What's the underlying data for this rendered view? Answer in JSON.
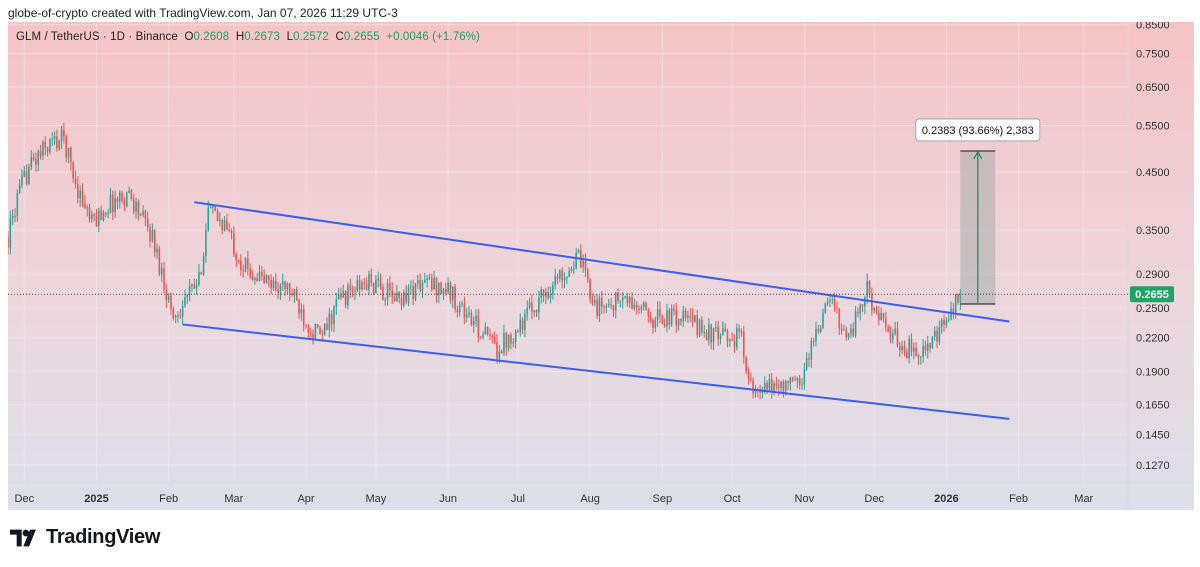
{
  "caption": "globe-of-crypto created with TradingView.com, Jan 07, 2026 11:29 UTC-3",
  "footer": {
    "brand": "TradingView"
  },
  "legend": {
    "symbol": "GLM / TetherUS · 1D · Binance",
    "o_label": "O",
    "o": "0.2608",
    "h_label": "H",
    "h": "0.2673",
    "l_label": "L",
    "l": "0.2572",
    "c_label": "C",
    "c": "0.2655",
    "change": "+0.0046 (+1.76%)"
  },
  "chart_data": {
    "type": "candlestick",
    "title": "GLM / TetherUS · 1D · Binance",
    "y_scale": "log",
    "ylim": [
      0.118,
      0.86
    ],
    "xlim": [
      "2024-11-24",
      "2026-03-20"
    ],
    "y_ticks": [
      "0.8500",
      "0.7500",
      "0.6500",
      "0.5500",
      "0.4500",
      "0.3500",
      "0.2900",
      "0.2500",
      "0.2200",
      "0.1900",
      "0.1650",
      "0.1450",
      "0.1270"
    ],
    "y_tick_values": [
      0.85,
      0.75,
      0.65,
      0.55,
      0.45,
      0.35,
      0.29,
      0.25,
      0.22,
      0.19,
      0.165,
      0.145,
      0.127
    ],
    "x_ticks": [
      {
        "label": "Dec",
        "date": "2024-12-01"
      },
      {
        "label": "2025",
        "date": "2025-01-01"
      },
      {
        "label": "Feb",
        "date": "2025-02-01"
      },
      {
        "label": "Mar",
        "date": "2025-03-01"
      },
      {
        "label": "Apr",
        "date": "2025-04-01"
      },
      {
        "label": "May",
        "date": "2025-05-01"
      },
      {
        "label": "Jun",
        "date": "2025-06-01"
      },
      {
        "label": "Jul",
        "date": "2025-07-01"
      },
      {
        "label": "Aug",
        "date": "2025-08-01"
      },
      {
        "label": "Sep",
        "date": "2025-09-01"
      },
      {
        "label": "Oct",
        "date": "2025-10-01"
      },
      {
        "label": "Nov",
        "date": "2025-11-01"
      },
      {
        "label": "Dec",
        "date": "2025-12-01"
      },
      {
        "label": "2026",
        "date": "2026-01-01"
      },
      {
        "label": "Feb",
        "date": "2026-02-01"
      },
      {
        "label": "Mar",
        "date": "2026-03-01"
      }
    ],
    "price_path": [
      {
        "date": "2024-11-24",
        "close": 0.34
      },
      {
        "date": "2024-11-28",
        "close": 0.4
      },
      {
        "date": "2024-12-03",
        "close": 0.46
      },
      {
        "date": "2024-12-12",
        "close": 0.51
      },
      {
        "date": "2024-12-18",
        "close": 0.52
      },
      {
        "date": "2024-12-23",
        "close": 0.43
      },
      {
        "date": "2024-12-30",
        "close": 0.36
      },
      {
        "date": "2025-01-06",
        "close": 0.39
      },
      {
        "date": "2025-01-15",
        "close": 0.41
      },
      {
        "date": "2025-01-25",
        "close": 0.34
      },
      {
        "date": "2025-02-03",
        "close": 0.24
      },
      {
        "date": "2025-02-08",
        "close": 0.26
      },
      {
        "date": "2025-02-14",
        "close": 0.28
      },
      {
        "date": "2025-02-18",
        "close": 0.38
      },
      {
        "date": "2025-02-25",
        "close": 0.36
      },
      {
        "date": "2025-03-05",
        "close": 0.3
      },
      {
        "date": "2025-03-15",
        "close": 0.28
      },
      {
        "date": "2025-03-25",
        "close": 0.27
      },
      {
        "date": "2025-04-03",
        "close": 0.23
      },
      {
        "date": "2025-04-08",
        "close": 0.22
      },
      {
        "date": "2025-04-15",
        "close": 0.26
      },
      {
        "date": "2025-04-28",
        "close": 0.28
      },
      {
        "date": "2025-05-10",
        "close": 0.26
      },
      {
        "date": "2025-05-22",
        "close": 0.28
      },
      {
        "date": "2025-06-01",
        "close": 0.27
      },
      {
        "date": "2025-06-10",
        "close": 0.24
      },
      {
        "date": "2025-06-22",
        "close": 0.21
      },
      {
        "date": "2025-07-01",
        "close": 0.23
      },
      {
        "date": "2025-07-10",
        "close": 0.26
      },
      {
        "date": "2025-07-20",
        "close": 0.29
      },
      {
        "date": "2025-07-27",
        "close": 0.31
      },
      {
        "date": "2025-08-04",
        "close": 0.25
      },
      {
        "date": "2025-08-15",
        "close": 0.26
      },
      {
        "date": "2025-08-28",
        "close": 0.24
      },
      {
        "date": "2025-09-10",
        "close": 0.24
      },
      {
        "date": "2025-09-25",
        "close": 0.22
      },
      {
        "date": "2025-10-05",
        "close": 0.22
      },
      {
        "date": "2025-10-10",
        "close": 0.17
      },
      {
        "date": "2025-10-20",
        "close": 0.18
      },
      {
        "date": "2025-10-30",
        "close": 0.18
      },
      {
        "date": "2025-11-05",
        "close": 0.22
      },
      {
        "date": "2025-11-12",
        "close": 0.26
      },
      {
        "date": "2025-11-20",
        "close": 0.22
      },
      {
        "date": "2025-11-28",
        "close": 0.27
      },
      {
        "date": "2025-12-05",
        "close": 0.23
      },
      {
        "date": "2025-12-15",
        "close": 0.21
      },
      {
        "date": "2025-12-25",
        "close": 0.21
      },
      {
        "date": "2026-01-02",
        "close": 0.24
      },
      {
        "date": "2026-01-07",
        "close": 0.2655
      }
    ],
    "trendlines": [
      {
        "name": "upper",
        "from": {
          "date": "2025-02-12",
          "price": 0.395
        },
        "to": {
          "date": "2026-01-28",
          "price": 0.236
        },
        "color": "#3b5cf5"
      },
      {
        "name": "lower",
        "from": {
          "date": "2025-02-07",
          "price": 0.233
        },
        "to": {
          "date": "2026-01-28",
          "price": 0.155
        },
        "color": "#3b5cf5"
      }
    ],
    "measure": {
      "from_date": "2026-01-07",
      "to_date": "2026-01-22",
      "from_price": 0.2545,
      "to_price": 0.4928,
      "label": "0.2383 (93.66%) 2,383"
    },
    "last_price": {
      "label": "0.2655",
      "value": 0.2655
    },
    "colors": {
      "up": "#26a69a",
      "down": "#ef5350",
      "trend": "#3b5cf5",
      "measure_fill": "#9aa3a5",
      "measure_line": "#1a8a5a",
      "price_tag": "#1fa463"
    },
    "grid": true
  }
}
